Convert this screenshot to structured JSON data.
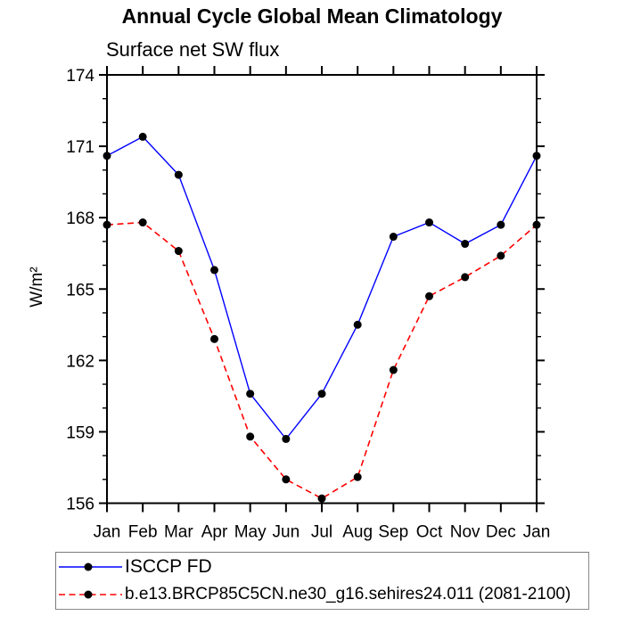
{
  "chart_data": {
    "type": "line",
    "title": "Annual Cycle Global Mean Climatology",
    "subtitle": "Surface net SW flux",
    "ylabel": "W/m²",
    "xlabel": "",
    "categories": [
      "Jan",
      "Feb",
      "Mar",
      "Apr",
      "May",
      "Jun",
      "Jul",
      "Aug",
      "Sep",
      "Oct",
      "Nov",
      "Dec",
      "Jan"
    ],
    "series": [
      {
        "name": "ISCCP FD",
        "color": "#0000ff",
        "line_style": "solid",
        "marker": "filled-circle",
        "marker_color": "#000000",
        "values": [
          170.6,
          171.4,
          169.8,
          165.8,
          160.6,
          158.7,
          160.6,
          163.5,
          167.2,
          167.8,
          166.9,
          167.7,
          170.6
        ]
      },
      {
        "name": "b.e13.BRCP85C5CN.ne30_g16.sehires24.011 (2081-2100)",
        "color": "#ff0000",
        "line_style": "dashed",
        "marker": "filled-circle",
        "marker_color": "#000000",
        "values": [
          167.7,
          167.8,
          166.6,
          162.9,
          158.8,
          157.0,
          156.2,
          157.1,
          161.6,
          164.7,
          165.5,
          166.4,
          167.7
        ]
      }
    ],
    "ylim": [
      156,
      174
    ],
    "yticks_major": [
      156,
      159,
      162,
      165,
      168,
      171,
      174
    ],
    "ytick_minor_step": 1,
    "grid": false,
    "legend_position": "bottom",
    "axis_color": "#000000",
    "background": "#ffffff"
  }
}
